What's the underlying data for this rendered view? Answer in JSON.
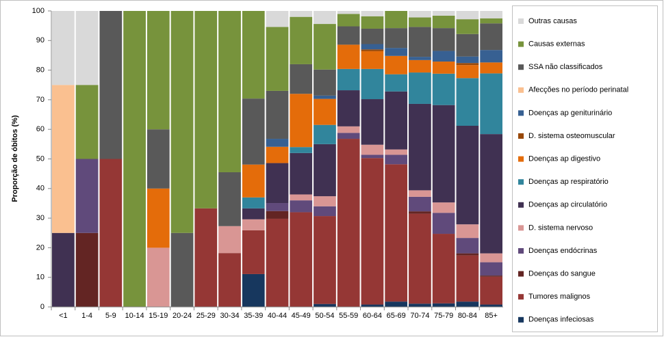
{
  "chart_data": {
    "type": "stacked_bar",
    "y_label": "Proporção de óbitos (%)",
    "categories": [
      "<1",
      "1-4",
      "5-9",
      "10-14",
      "15-19",
      "20-24",
      "25-29",
      "30-34",
      "35-39",
      "40-44",
      "45-49",
      "50-54",
      "55-59",
      "60-64",
      "65-69",
      "70-74",
      "75-79",
      "80-84",
      "85+"
    ],
    "ylim": [
      0,
      100
    ],
    "yticks": [
      0,
      10,
      20,
      30,
      40,
      50,
      60,
      70,
      80,
      90,
      100
    ],
    "grid": false,
    "legend": "right",
    "series": [
      {
        "name": "Doenças infeciosas",
        "color": "#17375e",
        "values": [
          0,
          0,
          0,
          0,
          0,
          0,
          0,
          0,
          11.1,
          0,
          0,
          1,
          0,
          0.8,
          1.8,
          1.1,
          1.2,
          1.8,
          0.8
        ]
      },
      {
        "name": "Tumores malignos",
        "color": "#953735",
        "values": [
          0,
          0,
          50,
          0,
          0,
          0,
          33.3,
          18.2,
          14.8,
          29.8,
          32,
          29.7,
          56.8,
          49.5,
          46.4,
          30.4,
          23.5,
          15.6,
          9.4
        ]
      },
      {
        "name": "Doenças do sangue",
        "color": "#632523",
        "values": [
          0,
          25,
          0,
          0,
          0,
          0,
          0,
          0,
          0,
          2.6,
          0,
          0,
          0,
          0,
          0,
          0.8,
          0,
          0.7,
          0.4
        ]
      },
      {
        "name": "Doenças endócrinas",
        "color": "#604a7b",
        "values": [
          0,
          25,
          0,
          0,
          0,
          0,
          0,
          0,
          0,
          2.7,
          4,
          3.3,
          2,
          1.1,
          3.2,
          4.9,
          7.1,
          5.2,
          4.5
        ]
      },
      {
        "name": "D. sistema nervoso",
        "color": "#d99694",
        "values": [
          0,
          0,
          0,
          0,
          20,
          0,
          0,
          9.1,
          3.7,
          0,
          2,
          3.4,
          2.2,
          3.4,
          1.8,
          2.2,
          3.5,
          4.6,
          3
        ]
      },
      {
        "name": "Doenças ap circulatório",
        "color": "#403152",
        "values": [
          25,
          0,
          0,
          0,
          0,
          0,
          0,
          0,
          3.7,
          13.5,
          14,
          17.6,
          12.2,
          15.4,
          19.6,
          29.2,
          32.9,
          33.3,
          40.3
        ]
      },
      {
        "name": "Doenças ap respiratório",
        "color": "#31859c",
        "values": [
          0,
          0,
          0,
          0,
          0,
          0,
          0,
          0,
          3.7,
          0,
          2,
          6.5,
          7.2,
          10.2,
          5.8,
          10.6,
          10.6,
          16.1,
          20.5
        ]
      },
      {
        "name": "Doenças ap digestivo",
        "color": "#e46c0a",
        "values": [
          0,
          0,
          0,
          0,
          20,
          0,
          0,
          0,
          11.1,
          5.5,
          18,
          8.8,
          8.2,
          6,
          6.2,
          4.2,
          4.1,
          4.4,
          3.7
        ]
      },
      {
        "name": "D. sistema osteomuscular",
        "color": "#984807",
        "values": [
          0,
          0,
          0,
          0,
          0,
          0,
          0,
          0,
          0,
          0,
          0,
          0,
          0,
          0.6,
          0,
          0,
          0,
          0.7,
          0
        ]
      },
      {
        "name": "Doenças ap geniturinário",
        "color": "#376092",
        "values": [
          0,
          0,
          0,
          0,
          0,
          0,
          0,
          0,
          0,
          2.7,
          0,
          1.1,
          0,
          1.8,
          2.7,
          1.1,
          3.6,
          2.2,
          4.2
        ]
      },
      {
        "name": "Afecções no período perinatal",
        "color": "#fac090",
        "values": [
          50,
          0,
          0,
          0,
          0,
          0,
          0,
          0,
          0,
          0,
          0,
          0,
          0,
          0,
          0,
          0,
          0,
          0,
          0
        ]
      },
      {
        "name": "SSA não classificados",
        "color": "#595959",
        "values": [
          0,
          0,
          50,
          0,
          20,
          25,
          0,
          18.2,
          22.3,
          16.2,
          10,
          8.8,
          6.2,
          5.2,
          6.7,
          10.1,
          7.7,
          7.6,
          9
        ]
      },
      {
        "name": "Causas externas",
        "color": "#77933c",
        "values": [
          0,
          25,
          0,
          100,
          40,
          75,
          66.7,
          54.5,
          29.6,
          21.6,
          16,
          15.4,
          4.2,
          4.2,
          5.8,
          3.2,
          4.2,
          5,
          1.7
        ]
      },
      {
        "name": "Outras causas",
        "color": "#d9d9d9",
        "values": [
          25,
          25,
          0,
          0,
          0,
          0,
          0,
          0,
          0,
          5.4,
          2,
          4.4,
          1,
          1.8,
          0,
          2.2,
          1.6,
          2.8,
          2.5
        ]
      }
    ]
  }
}
